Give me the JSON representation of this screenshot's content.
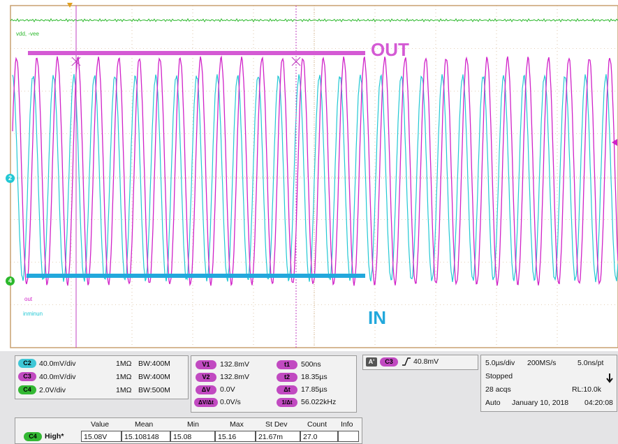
{
  "overlay": {
    "out_label": "OUT",
    "in_label": "IN"
  },
  "traces": {
    "vdd_label": "vdd, -vee",
    "out_label": "out",
    "in_label": "inminun",
    "ch2_marker": "2",
    "ch4_marker": "4"
  },
  "colors": {
    "cyan": "#22c8d4",
    "magenta": "#d022c8",
    "green": "#2cb82c",
    "grid": "#c8a070",
    "out_bar": "#d45ad4",
    "in_bar": "#22a8dc"
  },
  "channels": [
    {
      "name": "C2",
      "scale": "40.0mV/div",
      "imp": "1MΩ",
      "bw": "BW:400M",
      "color": "#3fc7d6"
    },
    {
      "name": "C3",
      "scale": "40.0mV/div",
      "imp": "1MΩ",
      "bw": "BW:400M",
      "color": "#c14ac1"
    },
    {
      "name": "C4",
      "scale": "2.0V/div",
      "imp": "1MΩ",
      "bw": "BW:500M",
      "color": "#33b833"
    }
  ],
  "cursors": {
    "v1_label": "V1",
    "v1": "132.8mV",
    "v2_label": "V2",
    "v2": "132.8mV",
    "dv_label": "ΔV",
    "dv": "0.0V",
    "dvdt_label": "ΔV/Δt",
    "dvdt": "0.0V/s",
    "t1_label": "t1",
    "t1": "500ns",
    "t2_label": "t2",
    "t2": "18.35µs",
    "dt_label": "Δt",
    "dt": "17.85µs",
    "f_label": "1/Δt",
    "f": "56.022kHz"
  },
  "trigger": {
    "mode_badge": "A'",
    "channel": "C3",
    "level": "40.8mV"
  },
  "acquisition": {
    "timebase": "5.0µs/div",
    "sample_rate": "200MS/s",
    "resolution": "5.0ns/pt",
    "state": "Stopped",
    "acqs": "28 acqs",
    "record_length": "RL:10.0k",
    "trigger_mode": "Auto",
    "date": "January 10, 2018",
    "time": "04:20:08"
  },
  "measurement": {
    "headers": [
      "Value",
      "Mean",
      "Min",
      "Max",
      "St Dev",
      "Count",
      "Info"
    ],
    "channel": "C4",
    "name": "High*",
    "values": [
      "15.08V",
      "15.108148",
      "15.08",
      "15.16",
      "21.67m",
      "27.0",
      ""
    ]
  }
}
